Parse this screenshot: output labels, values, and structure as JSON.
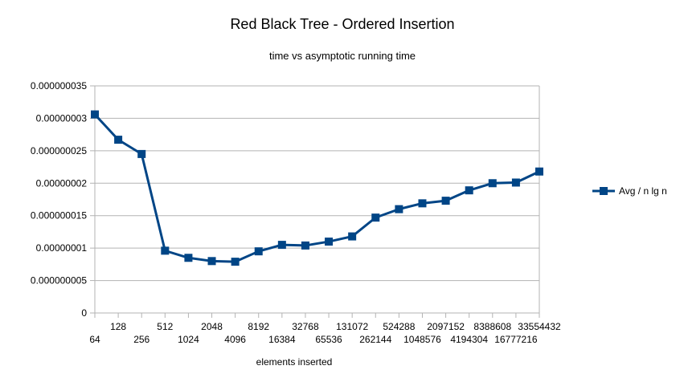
{
  "chart_data": {
    "type": "line",
    "title": "Red Black Tree - Ordered Insertion",
    "subtitle": "time vs asymptotic running time",
    "xlabel": "elements inserted",
    "ylabel": "",
    "categories": [
      "64",
      "128",
      "256",
      "512",
      "1024",
      "2048",
      "4096",
      "8192",
      "16384",
      "32768",
      "65536",
      "131072",
      "262144",
      "524288",
      "1048576",
      "2097152",
      "4194304",
      "8388608",
      "16777216",
      "33554432"
    ],
    "ylim": [
      0,
      3.5e-08
    ],
    "yticks": [
      0,
      5e-09,
      1e-08,
      1.5e-08,
      2e-08,
      2.5e-08,
      3e-08,
      3.5e-08
    ],
    "ytick_labels": [
      "0",
      "0.000000005",
      "0.00000001",
      "0.000000015",
      "0.00000002",
      "0.000000025",
      "0.00000003",
      "0.000000035"
    ],
    "grid": true,
    "legend_position": "right",
    "series": [
      {
        "name": "Avg / n lg n",
        "color": "#004586",
        "marker": "square",
        "values": [
          3.06e-08,
          2.67e-08,
          2.45e-08,
          9.6e-09,
          8.5e-09,
          8e-09,
          7.9e-09,
          9.5e-09,
          1.05e-08,
          1.04e-08,
          1.1e-08,
          1.18e-08,
          1.47e-08,
          1.6e-08,
          1.69e-08,
          1.73e-08,
          1.89e-08,
          2e-08,
          2.01e-08,
          2.18e-08
        ]
      }
    ]
  }
}
